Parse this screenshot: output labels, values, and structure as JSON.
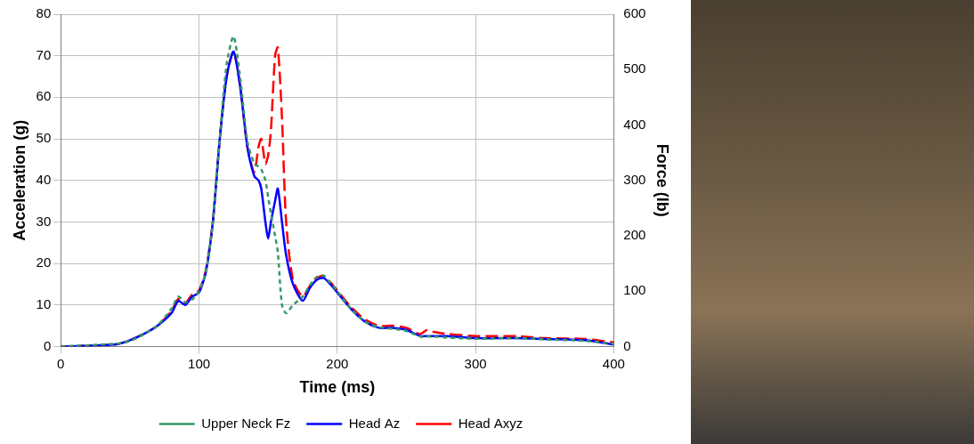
{
  "chart_data": {
    "type": "line",
    "x_label": "Time (ms)",
    "y_label": "Acceleration (g)",
    "y2_label": "Force (lb)",
    "x": [
      0,
      40,
      50,
      60,
      70,
      80,
      85,
      90,
      95,
      100,
      105,
      110,
      115,
      120,
      125,
      130,
      135,
      140,
      143,
      145,
      148,
      150,
      152,
      155,
      157,
      160,
      163,
      168,
      175,
      180,
      185,
      190,
      195,
      200,
      210,
      220,
      230,
      240,
      250,
      260,
      265,
      270,
      280,
      300,
      330,
      350,
      380,
      400
    ],
    "series": [
      {
        "name": "Head Az",
        "color": "#0000ff",
        "line_style": "solid",
        "marker": "none",
        "values": [
          0,
          0.5,
          1.5,
          3,
          5,
          8,
          11,
          10,
          12,
          13,
          18,
          30,
          50,
          65,
          71,
          62,
          48,
          41,
          40,
          38,
          30,
          26,
          30,
          35,
          38,
          30,
          22,
          15,
          11,
          14,
          16,
          16.5,
          15,
          13,
          9,
          6,
          4.5,
          4.5,
          4,
          2.5,
          2.5,
          2.5,
          2.5,
          2,
          2,
          1.8,
          1.5,
          0.5
        ]
      },
      {
        "name": "Head Axyz",
        "color": "#ff0000",
        "line_style": "dashed",
        "marker": "none",
        "values": [
          0,
          0.5,
          1.5,
          3,
          5,
          8.5,
          11.5,
          10.5,
          12.5,
          13.5,
          18.5,
          30,
          50,
          65,
          71,
          62,
          48,
          42,
          48,
          50,
          44,
          46,
          52,
          70,
          72,
          55,
          30,
          16,
          12,
          14.5,
          16.5,
          17,
          15.5,
          13.5,
          9.5,
          6.5,
          5,
          5,
          4.5,
          3,
          4,
          3.5,
          3,
          2.5,
          2.5,
          2,
          1.8,
          1
        ]
      },
      {
        "name": "Upper Neck Fz",
        "color": "#339966",
        "line_style": "dotted",
        "marker": "none",
        "axis": "y2",
        "values": [
          0,
          5,
          10,
          22,
          38,
          68,
          90,
          80,
          85,
          100,
          135,
          225,
          375,
          510,
          560,
          480,
          370,
          330,
          325,
          320,
          300,
          270,
          240,
          200,
          170,
          75,
          60,
          75,
          90,
          110,
          125,
          128,
          115,
          100,
          68,
          45,
          35,
          32,
          28,
          18,
          18,
          18,
          16,
          14,
          15,
          13,
          10,
          5
        ]
      }
    ],
    "xlim": [
      0,
      400
    ],
    "xticks": [
      0,
      100,
      200,
      300,
      400
    ],
    "ylim": [
      0,
      80
    ],
    "yticks": [
      0,
      10,
      20,
      30,
      40,
      50,
      60,
      70,
      80
    ],
    "y2lim": [
      0,
      600
    ],
    "y2ticks": [
      0,
      100,
      200,
      300,
      400,
      500,
      600
    ],
    "grid": true,
    "legend": "bottom"
  }
}
